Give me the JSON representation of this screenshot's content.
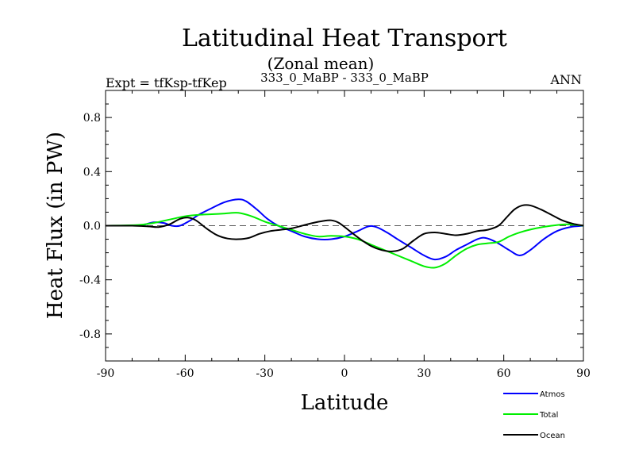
{
  "chart_data": {
    "type": "line",
    "title": "Latitudinal Heat Transport",
    "subtitle": "(Zonal mean)",
    "center_label": "333_0_MaBP - 333_0_MaBP",
    "left_label": "Expt = tfKsp-tfKep",
    "right_label": "ANN",
    "xlabel": "Latitude",
    "ylabel": "Heat Flux (in PW)",
    "xlim": [
      -90,
      90
    ],
    "ylim": [
      -1.0,
      1.0
    ],
    "x_ticks": [
      -90,
      -60,
      -30,
      0,
      30,
      60,
      90
    ],
    "x_tick_labels": [
      "-90",
      "-60",
      "-30",
      "0",
      "30",
      "60",
      "90"
    ],
    "y_ticks": [
      0.8,
      0.4,
      0.0,
      -0.4,
      -0.8
    ],
    "y_tick_labels": [
      "0.8",
      "0.4",
      "0.0",
      "-0.4",
      "-0.8"
    ],
    "zero_line": "dashed",
    "legend_position": "bottom-right",
    "series": [
      {
        "name": "Atmos",
        "color": "#0000ff",
        "points": [
          [
            -90,
            0
          ],
          [
            -80,
            0
          ],
          [
            -76,
            0.005
          ],
          [
            -72,
            0.025
          ],
          [
            -68,
            0.02
          ],
          [
            -65,
            0.0
          ],
          [
            -62,
            0.0
          ],
          [
            -58,
            0.04
          ],
          [
            -55,
            0.08
          ],
          [
            -50,
            0.13
          ],
          [
            -45,
            0.175
          ],
          [
            -40,
            0.195
          ],
          [
            -37,
            0.18
          ],
          [
            -33,
            0.12
          ],
          [
            -29,
            0.05
          ],
          [
            -25,
            0.0
          ],
          [
            -20,
            -0.04
          ],
          [
            -15,
            -0.08
          ],
          [
            -10,
            -0.1
          ],
          [
            -5,
            -0.1
          ],
          [
            0,
            -0.08
          ],
          [
            5,
            -0.04
          ],
          [
            9,
            -0.005
          ],
          [
            12,
            -0.01
          ],
          [
            16,
            -0.05
          ],
          [
            20,
            -0.1
          ],
          [
            25,
            -0.16
          ],
          [
            30,
            -0.22
          ],
          [
            34,
            -0.25
          ],
          [
            38,
            -0.23
          ],
          [
            42,
            -0.18
          ],
          [
            46,
            -0.14
          ],
          [
            50,
            -0.1
          ],
          [
            53,
            -0.09
          ],
          [
            57,
            -0.12
          ],
          [
            62,
            -0.18
          ],
          [
            66,
            -0.22
          ],
          [
            70,
            -0.18
          ],
          [
            75,
            -0.1
          ],
          [
            80,
            -0.04
          ],
          [
            85,
            -0.01
          ],
          [
            90,
            0
          ]
        ]
      },
      {
        "name": "Total",
        "color": "#00ee00",
        "points": [
          [
            -90,
            0
          ],
          [
            -78,
            0.005
          ],
          [
            -72,
            0.02
          ],
          [
            -66,
            0.045
          ],
          [
            -60,
            0.07
          ],
          [
            -55,
            0.08
          ],
          [
            -50,
            0.085
          ],
          [
            -45,
            0.09
          ],
          [
            -40,
            0.095
          ],
          [
            -35,
            0.07
          ],
          [
            -30,
            0.03
          ],
          [
            -25,
            0.0
          ],
          [
            -20,
            -0.03
          ],
          [
            -15,
            -0.06
          ],
          [
            -10,
            -0.08
          ],
          [
            -5,
            -0.075
          ],
          [
            0,
            -0.08
          ],
          [
            5,
            -0.1
          ],
          [
            10,
            -0.14
          ],
          [
            15,
            -0.18
          ],
          [
            20,
            -0.22
          ],
          [
            25,
            -0.26
          ],
          [
            30,
            -0.3
          ],
          [
            34,
            -0.31
          ],
          [
            38,
            -0.28
          ],
          [
            42,
            -0.22
          ],
          [
            46,
            -0.17
          ],
          [
            50,
            -0.14
          ],
          [
            54,
            -0.13
          ],
          [
            58,
            -0.12
          ],
          [
            62,
            -0.08
          ],
          [
            66,
            -0.05
          ],
          [
            72,
            -0.02
          ],
          [
            78,
            0.0
          ],
          [
            84,
            0.01
          ],
          [
            90,
            0
          ]
        ]
      },
      {
        "name": "Ocean",
        "color": "#000000",
        "points": [
          [
            -90,
            0
          ],
          [
            -80,
            0
          ],
          [
            -74,
            -0.005
          ],
          [
            -70,
            -0.01
          ],
          [
            -66,
            0.01
          ],
          [
            -62,
            0.05
          ],
          [
            -59,
            0.06
          ],
          [
            -56,
            0.04
          ],
          [
            -52,
            -0.02
          ],
          [
            -48,
            -0.07
          ],
          [
            -44,
            -0.095
          ],
          [
            -40,
            -0.1
          ],
          [
            -36,
            -0.09
          ],
          [
            -32,
            -0.06
          ],
          [
            -28,
            -0.04
          ],
          [
            -24,
            -0.03
          ],
          [
            -20,
            -0.02
          ],
          [
            -16,
            0.0
          ],
          [
            -12,
            0.02
          ],
          [
            -8,
            0.035
          ],
          [
            -5,
            0.04
          ],
          [
            -2,
            0.02
          ],
          [
            2,
            -0.04
          ],
          [
            6,
            -0.1
          ],
          [
            10,
            -0.15
          ],
          [
            14,
            -0.18
          ],
          [
            18,
            -0.19
          ],
          [
            22,
            -0.17
          ],
          [
            26,
            -0.11
          ],
          [
            30,
            -0.06
          ],
          [
            34,
            -0.05
          ],
          [
            38,
            -0.06
          ],
          [
            42,
            -0.07
          ],
          [
            46,
            -0.06
          ],
          [
            50,
            -0.04
          ],
          [
            54,
            -0.03
          ],
          [
            58,
            0.0
          ],
          [
            61,
            0.06
          ],
          [
            64,
            0.12
          ],
          [
            67,
            0.15
          ],
          [
            70,
            0.15
          ],
          [
            74,
            0.12
          ],
          [
            78,
            0.08
          ],
          [
            82,
            0.04
          ],
          [
            86,
            0.015
          ],
          [
            90,
            0
          ]
        ]
      }
    ]
  }
}
